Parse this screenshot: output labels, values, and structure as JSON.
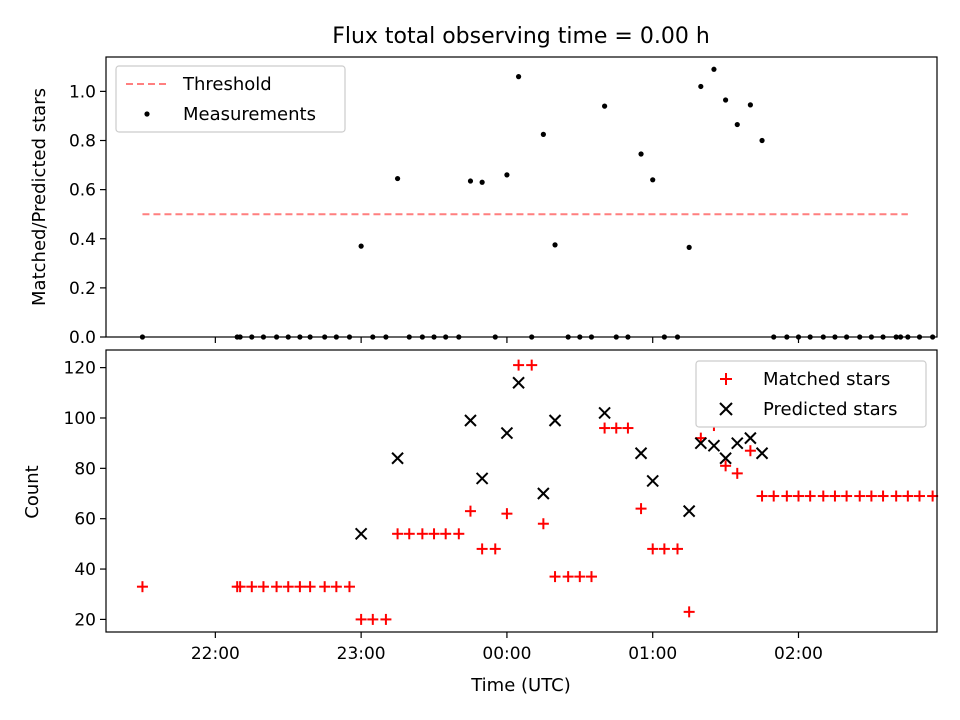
{
  "chart_data": [
    {
      "type": "scatter",
      "title": "Flux total observing time = 0.00 h",
      "xlabel": "",
      "ylabel": "Matched/Predicted stars",
      "xlim": [
        -2.75,
        2.95
      ],
      "ylim": [
        0,
        1.14
      ],
      "yticks": [
        0.0,
        0.2,
        0.4,
        0.6,
        0.8,
        1.0
      ],
      "ytick_labels": [
        "0.0",
        "0.2",
        "0.4",
        "0.6",
        "0.8",
        "1.0"
      ],
      "xticks": [
        -2,
        -1,
        0,
        1,
        2
      ],
      "legend": {
        "position": "top-left",
        "entries": [
          "Threshold",
          "Measurements"
        ]
      },
      "threshold": {
        "name": "Threshold",
        "y": 0.5,
        "x": [
          -2.5,
          2.75
        ],
        "color": "#ff7f7f",
        "style": "dashed"
      },
      "series": [
        {
          "name": "Measurements",
          "color": "#000000",
          "marker": "dot",
          "points": [
            [
              -2.5,
              0
            ],
            [
              -1.85,
              0
            ],
            [
              -1.83,
              0
            ],
            [
              -1.75,
              0
            ],
            [
              -1.67,
              0
            ],
            [
              -1.58,
              0
            ],
            [
              -1.5,
              0
            ],
            [
              -1.42,
              0
            ],
            [
              -1.35,
              0
            ],
            [
              -1.25,
              0
            ],
            [
              -1.17,
              0
            ],
            [
              -1.08,
              0
            ],
            [
              -1.0,
              0.37
            ],
            [
              -0.92,
              0
            ],
            [
              -0.83,
              0
            ],
            [
              -0.75,
              0.645
            ],
            [
              -0.67,
              0
            ],
            [
              -0.58,
              0
            ],
            [
              -0.5,
              0
            ],
            [
              -0.42,
              0
            ],
            [
              -0.33,
              0
            ],
            [
              -0.25,
              0.635
            ],
            [
              -0.17,
              0.63
            ],
            [
              -0.08,
              0
            ],
            [
              0.0,
              0.66
            ],
            [
              0.08,
              1.06
            ],
            [
              0.17,
              0
            ],
            [
              0.25,
              0.825
            ],
            [
              0.33,
              0.375
            ],
            [
              0.42,
              0
            ],
            [
              0.5,
              0
            ],
            [
              0.58,
              0
            ],
            [
              0.67,
              0.94
            ],
            [
              0.75,
              0
            ],
            [
              0.83,
              0
            ],
            [
              0.92,
              0.745
            ],
            [
              1.0,
              0.64
            ],
            [
              1.08,
              0
            ],
            [
              1.17,
              0
            ],
            [
              1.25,
              0.365
            ],
            [
              1.33,
              1.02
            ],
            [
              1.42,
              1.09
            ],
            [
              1.5,
              0.965
            ],
            [
              1.58,
              0.865
            ],
            [
              1.67,
              0.945
            ],
            [
              1.75,
              0.8
            ],
            [
              1.83,
              0
            ],
            [
              1.92,
              0
            ],
            [
              2.0,
              0
            ],
            [
              2.08,
              0
            ],
            [
              2.17,
              0
            ],
            [
              2.25,
              0
            ],
            [
              2.33,
              0
            ],
            [
              2.42,
              0
            ],
            [
              2.5,
              0
            ],
            [
              2.58,
              0
            ],
            [
              2.67,
              0
            ],
            [
              2.75,
              0
            ],
            [
              2.83,
              0
            ],
            [
              2.92,
              0
            ],
            [
              2.7,
              0
            ]
          ]
        }
      ]
    },
    {
      "type": "scatter",
      "title": "",
      "xlabel": "Time (UTC)",
      "ylabel": "Count",
      "xlim": [
        -2.75,
        2.95
      ],
      "ylim": [
        15,
        127
      ],
      "yticks": [
        20,
        40,
        60,
        80,
        100,
        120
      ],
      "ytick_labels": [
        "20",
        "40",
        "60",
        "80",
        "100",
        "120"
      ],
      "xticks": [
        -2,
        -1,
        0,
        1,
        2
      ],
      "xtick_labels": [
        "22:00",
        "23:00",
        "00:00",
        "01:00",
        "02:00"
      ],
      "legend": {
        "position": "top-right",
        "entries": [
          "Matched stars",
          "Predicted stars"
        ]
      },
      "series": [
        {
          "name": "Matched stars",
          "color": "#ff0000",
          "marker": "plus",
          "points": [
            [
              -2.5,
              33
            ],
            [
              -1.85,
              33
            ],
            [
              -1.83,
              33
            ],
            [
              -1.75,
              33
            ],
            [
              -1.67,
              33
            ],
            [
              -1.58,
              33
            ],
            [
              -1.5,
              33
            ],
            [
              -1.42,
              33
            ],
            [
              -1.35,
              33
            ],
            [
              -1.25,
              33
            ],
            [
              -1.17,
              33
            ],
            [
              -1.08,
              33
            ],
            [
              -1.0,
              20
            ],
            [
              -0.92,
              20
            ],
            [
              -0.83,
              20
            ],
            [
              -0.75,
              54
            ],
            [
              -0.67,
              54
            ],
            [
              -0.58,
              54
            ],
            [
              -0.5,
              54
            ],
            [
              -0.42,
              54
            ],
            [
              -0.33,
              54
            ],
            [
              -0.25,
              63
            ],
            [
              -0.17,
              48
            ],
            [
              -0.08,
              48
            ],
            [
              0.0,
              62
            ],
            [
              0.08,
              121
            ],
            [
              0.17,
              121
            ],
            [
              0.25,
              58
            ],
            [
              0.33,
              37
            ],
            [
              0.42,
              37
            ],
            [
              0.5,
              37
            ],
            [
              0.58,
              37
            ],
            [
              0.67,
              96
            ],
            [
              0.75,
              96
            ],
            [
              0.83,
              96
            ],
            [
              0.92,
              64
            ],
            [
              1.0,
              48
            ],
            [
              1.08,
              48
            ],
            [
              1.17,
              48
            ],
            [
              1.25,
              23
            ],
            [
              1.33,
              92
            ],
            [
              1.42,
              97
            ],
            [
              1.5,
              81
            ],
            [
              1.58,
              78
            ],
            [
              1.67,
              87
            ],
            [
              1.75,
              69
            ],
            [
              1.83,
              69
            ],
            [
              1.92,
              69
            ],
            [
              2.0,
              69
            ],
            [
              2.08,
              69
            ],
            [
              2.17,
              69
            ],
            [
              2.25,
              69
            ],
            [
              2.33,
              69
            ],
            [
              2.42,
              69
            ],
            [
              2.5,
              69
            ],
            [
              2.58,
              69
            ],
            [
              2.67,
              69
            ],
            [
              2.75,
              69
            ],
            [
              2.83,
              69
            ],
            [
              2.92,
              69
            ]
          ]
        },
        {
          "name": "Predicted stars",
          "color": "#000000",
          "marker": "x",
          "points": [
            [
              -1.0,
              54
            ],
            [
              -0.75,
              84
            ],
            [
              -0.25,
              99
            ],
            [
              -0.17,
              76
            ],
            [
              0.0,
              94
            ],
            [
              0.08,
              114
            ],
            [
              0.25,
              70
            ],
            [
              0.33,
              99
            ],
            [
              0.67,
              102
            ],
            [
              0.92,
              86
            ],
            [
              1.0,
              75
            ],
            [
              1.25,
              63
            ],
            [
              1.33,
              90
            ],
            [
              1.42,
              89
            ],
            [
              1.5,
              84
            ],
            [
              1.58,
              90
            ],
            [
              1.67,
              92
            ],
            [
              1.75,
              86
            ]
          ]
        }
      ]
    }
  ]
}
